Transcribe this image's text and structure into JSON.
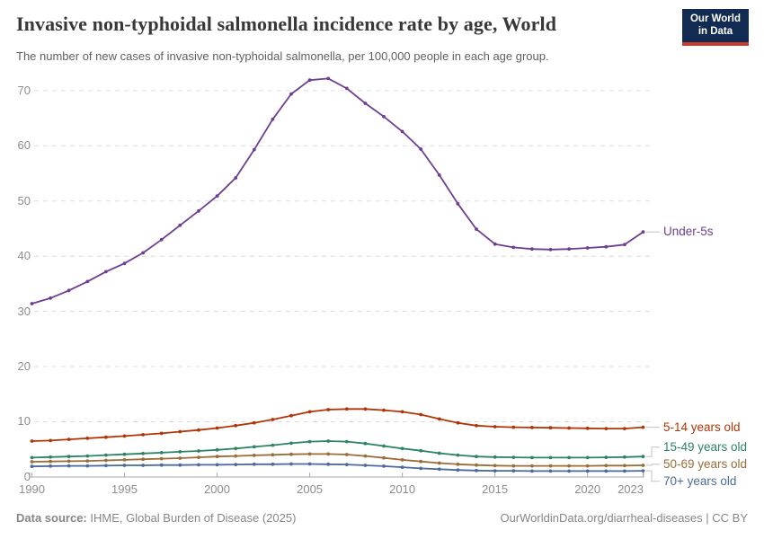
{
  "header": {
    "title": "Invasive non-typhoidal salmonella incidence rate by age, World",
    "subtitle": "The number of new cases of invasive non-typhoidal salmonella, per 100,000 people in each age group.",
    "logo": {
      "line1": "Our World",
      "line2": "in Data",
      "bg": "#122B52",
      "accent": "#C8392E"
    }
  },
  "footer": {
    "source_label": "Data source:",
    "source_text": " IHME, Global Burden of Disease (2025)",
    "credit": "OurWorldinData.org/diarrheal-diseases | CC BY"
  },
  "chart_data": {
    "type": "line",
    "title": "Invasive non-typhoidal salmonella incidence rate by age, World",
    "xlabel": "",
    "ylabel": "",
    "xlim": [
      1990,
      2023
    ],
    "ylim": [
      0,
      75
    ],
    "grid": "horizontal dashed",
    "legend_position": "end-of-line labels, right",
    "x": [
      1990,
      1991,
      1992,
      1993,
      1994,
      1995,
      1996,
      1997,
      1998,
      1999,
      2000,
      2001,
      2002,
      2003,
      2004,
      2005,
      2006,
      2007,
      2008,
      2009,
      2010,
      2011,
      2012,
      2013,
      2014,
      2015,
      2016,
      2017,
      2018,
      2019,
      2020,
      2021,
      2022,
      2023
    ],
    "xticks": [
      1990,
      1995,
      2000,
      2005,
      2010,
      2015,
      2020,
      2023
    ],
    "yticks": [
      0,
      10,
      20,
      30,
      40,
      50,
      60,
      70
    ],
    "series": [
      {
        "name": "Under-5s",
        "color": "#6D3E91",
        "values": [
          31.4,
          32.4,
          33.8,
          35.4,
          37.2,
          38.7,
          40.6,
          43.0,
          45.6,
          48.2,
          50.9,
          54.2,
          59.3,
          64.8,
          69.4,
          71.9,
          72.2,
          70.4,
          67.7,
          65.3,
          62.6,
          59.4,
          54.7,
          49.5,
          44.9,
          42.2,
          41.6,
          41.3,
          41.2,
          41.3,
          41.5,
          41.7,
          42.1,
          44.4
        ]
      },
      {
        "name": "5-14 years old",
        "color": "#B13507",
        "values": [
          6.5,
          6.6,
          6.8,
          7.0,
          7.2,
          7.4,
          7.65,
          7.9,
          8.2,
          8.5,
          8.85,
          9.3,
          9.8,
          10.4,
          11.1,
          11.8,
          12.2,
          12.3,
          12.3,
          12.1,
          11.8,
          11.3,
          10.5,
          9.8,
          9.3,
          9.1,
          9.0,
          8.95,
          8.9,
          8.85,
          8.8,
          8.75,
          8.75,
          9.0
        ]
      },
      {
        "name": "15-49 years old",
        "color": "#2C8465",
        "values": [
          3.5,
          3.6,
          3.7,
          3.8,
          3.95,
          4.1,
          4.25,
          4.4,
          4.55,
          4.7,
          4.9,
          5.15,
          5.45,
          5.75,
          6.1,
          6.4,
          6.5,
          6.4,
          6.05,
          5.6,
          5.15,
          4.75,
          4.3,
          3.95,
          3.7,
          3.6,
          3.55,
          3.5,
          3.5,
          3.5,
          3.5,
          3.55,
          3.6,
          3.7
        ]
      },
      {
        "name": "50-69 years old",
        "color": "#996D39",
        "values": [
          2.75,
          2.8,
          2.85,
          2.9,
          3.0,
          3.1,
          3.2,
          3.3,
          3.4,
          3.55,
          3.7,
          3.8,
          3.9,
          4.0,
          4.1,
          4.15,
          4.15,
          4.05,
          3.8,
          3.45,
          3.1,
          2.8,
          2.5,
          2.3,
          2.15,
          2.05,
          2.0,
          2.0,
          2.0,
          2.0,
          2.0,
          2.05,
          2.05,
          2.1
        ]
      },
      {
        "name": "70+ years old",
        "color": "#4C6A9C",
        "values": [
          1.9,
          1.95,
          2.0,
          2.0,
          2.05,
          2.1,
          2.1,
          2.15,
          2.15,
          2.2,
          2.2,
          2.25,
          2.3,
          2.3,
          2.35,
          2.35,
          2.3,
          2.25,
          2.1,
          1.95,
          1.75,
          1.55,
          1.4,
          1.25,
          1.15,
          1.1,
          1.1,
          1.05,
          1.05,
          1.05,
          1.05,
          1.05,
          1.05,
          1.1
        ]
      }
    ]
  }
}
